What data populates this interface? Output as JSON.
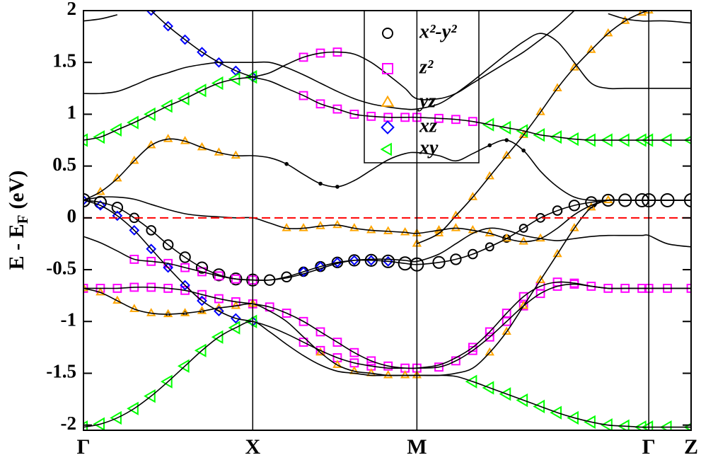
{
  "chart_data": {
    "type": "band",
    "ylabel": "E - E",
    "ylabel_sub": "F",
    "ylabel_unit": "(eV)",
    "xlim": [
      0,
      3.59
    ],
    "ylim": [
      -2.05,
      2
    ],
    "xticks": [
      {
        "value": 0,
        "label": "Γ"
      },
      {
        "value": 1.0,
        "label": "X"
      },
      {
        "value": 1.97,
        "label": "M"
      },
      {
        "value": 3.34,
        "label": "Γ"
      },
      {
        "value": 3.59,
        "label": "Z"
      }
    ],
    "yticks": [
      -2,
      -1.5,
      -1,
      -0.5,
      0,
      0.5,
      1,
      1.5,
      2
    ],
    "fermi_level": 0,
    "fermi_color": "#ff0000",
    "band_color": "#000000",
    "legend": "top",
    "x": [
      0,
      0.1,
      0.2,
      0.3,
      0.4,
      0.5,
      0.6,
      0.7,
      0.8,
      0.9,
      1.0,
      1.1,
      1.2,
      1.3,
      1.4,
      1.5,
      1.6,
      1.7,
      1.8,
      1.9,
      1.97,
      2.1,
      2.2,
      2.3,
      2.4,
      2.5,
      2.6,
      2.7,
      2.8,
      2.9,
      3.0,
      3.1,
      3.2,
      3.3,
      3.34,
      3.45,
      3.59
    ],
    "bands": [
      [
        -2.02,
        -1.99,
        -1.93,
        -1.84,
        -1.72,
        -1.58,
        -1.43,
        -1.28,
        -1.15,
        -1.06,
        -1.0,
        -1.1,
        -1.22,
        -1.33,
        -1.42,
        -1.48,
        -1.5,
        -1.52,
        -1.52,
        -1.52,
        -1.52,
        -1.52,
        -1.53,
        -1.58,
        -1.64,
        -1.7,
        -1.76,
        -1.82,
        -1.88,
        -1.93,
        -1.97,
        -2.0,
        -2.01,
        -2.02,
        -2.02,
        -2.02,
        -2.02
      ],
      [
        0.17,
        0.12,
        0.02,
        -0.12,
        -0.3,
        -0.48,
        -0.65,
        -0.8,
        -0.9,
        -0.97,
        -1.0,
        -1.05,
        -1.12,
        -1.2,
        -1.28,
        -1.35,
        -1.4,
        -1.43,
        -1.45,
        -1.45,
        -1.45,
        -1.42,
        -1.35,
        -1.25,
        -1.1,
        -0.92,
        -0.76,
        -0.66,
        -0.62,
        -0.63,
        -0.66,
        -0.68,
        -0.68,
        -0.68,
        -0.68,
        -0.68,
        -0.68
      ],
      [
        -0.68,
        -0.68,
        -0.68,
        -0.67,
        -0.67,
        -0.68,
        -0.7,
        -0.74,
        -0.78,
        -0.81,
        -0.83,
        -0.86,
        -0.92,
        -1.0,
        -1.1,
        -1.2,
        -1.3,
        -1.38,
        -1.43,
        -1.45,
        -1.45,
        -1.44,
        -1.38,
        -1.28,
        -1.15,
        -1.0,
        -0.85,
        -0.73,
        -0.66,
        -0.64,
        -0.66,
        -0.68,
        -0.68,
        -0.68,
        -0.68,
        -0.68,
        -0.68
      ],
      [
        0.17,
        0.15,
        0.1,
        0.0,
        -0.12,
        -0.26,
        -0.38,
        -0.48,
        -0.55,
        -0.59,
        -0.6,
        -0.6,
        -0.57,
        -0.52,
        -0.47,
        -0.43,
        -0.41,
        -0.41,
        -0.42,
        -0.44,
        -0.45,
        -0.43,
        -0.4,
        -0.35,
        -0.28,
        -0.2,
        -0.1,
        0.0,
        0.07,
        0.12,
        0.15,
        0.17,
        0.17,
        0.17,
        0.17,
        0.17,
        0.17
      ],
      [
        -0.18,
        -0.24,
        -0.32,
        -0.4,
        -0.42,
        -0.44,
        -0.48,
        -0.52,
        -0.56,
        -0.59,
        -0.6,
        -0.6,
        -0.58,
        -0.54,
        -0.49,
        -0.44,
        -0.41,
        -0.4,
        -0.4,
        -0.41,
        -0.42,
        -0.35,
        -0.25,
        -0.15,
        -0.1,
        -0.12,
        -0.17,
        -0.2,
        -0.22,
        -0.2,
        -0.18,
        -0.17,
        -0.17,
        -0.17,
        -0.17,
        -0.25,
        -0.28
      ],
      [
        -0.68,
        -0.72,
        -0.8,
        -0.88,
        -0.92,
        -0.93,
        -0.92,
        -0.9,
        -0.87,
        -0.85,
        -0.83,
        -0.9,
        -1.0,
        -1.15,
        -1.3,
        -1.42,
        -1.48,
        -1.5,
        -1.52,
        -1.52,
        -1.52,
        -1.52,
        -1.5,
        -1.45,
        -1.3,
        -1.1,
        -0.85,
        -0.6,
        -0.35,
        -0.1,
        0.1,
        0.17,
        0.17,
        0.17,
        0.17,
        0.17,
        0.17
      ],
      [
        0.17,
        0.25,
        0.38,
        0.55,
        0.7,
        0.76,
        0.74,
        0.68,
        0.63,
        0.6,
        0.6,
        0.58,
        0.52,
        0.42,
        0.33,
        0.3,
        0.36,
        0.46,
        0.56,
        0.62,
        0.63,
        0.6,
        0.55,
        0.62,
        0.7,
        0.75,
        0.65,
        0.45,
        0.3,
        0.2,
        0.17,
        0.17,
        0.17,
        0.17,
        0.17,
        0.17,
        0.17
      ],
      [
        0.17,
        0.2,
        0.2,
        0.18,
        0.13,
        0.08,
        0.04,
        0.02,
        0.01,
        0.0,
        0.0,
        -0.05,
        -0.1,
        -0.1,
        -0.08,
        -0.07,
        -0.1,
        -0.12,
        -0.13,
        -0.14,
        -0.15,
        -0.12,
        -0.1,
        -0.12,
        -0.15,
        -0.2,
        -0.23,
        -0.2,
        -0.1,
        0.03,
        0.12,
        0.17,
        0.17,
        0.17,
        0.17,
        0.17,
        0.17
      ],
      [
        null,
        null,
        null,
        null,
        2.0,
        1.85,
        1.72,
        1.6,
        1.5,
        1.42,
        1.36,
        1.32,
        1.25,
        1.18,
        1.1,
        1.05,
        1.0,
        0.98,
        0.97,
        0.97,
        0.97,
        0.96,
        0.95,
        0.93,
        0.9,
        0.87,
        0.84,
        0.8,
        0.78,
        0.76,
        0.75,
        0.75,
        0.75,
        0.75,
        0.75,
        0.75,
        0.75
      ],
      [
        0.75,
        0.78,
        0.85,
        0.92,
        1.0,
        1.08,
        1.15,
        1.23,
        1.3,
        1.34,
        1.36,
        1.4,
        1.48,
        1.55,
        1.59,
        1.6,
        1.58,
        1.5,
        1.38,
        1.25,
        1.15,
        1.15,
        1.2,
        1.3,
        1.4,
        1.5,
        1.6,
        1.72,
        1.85,
        2.0,
        null,
        null,
        null,
        null,
        null,
        null,
        null
      ],
      [
        1.2,
        1.2,
        1.22,
        1.28,
        1.35,
        1.4,
        1.45,
        1.48,
        1.5,
        1.5,
        1.5,
        1.5,
        1.45,
        1.38,
        1.3,
        1.22,
        1.15,
        1.1,
        1.07,
        1.05,
        1.05,
        1.1,
        1.2,
        1.32,
        1.45,
        1.58,
        1.7,
        1.78,
        1.7,
        1.5,
        1.3,
        1.25,
        1.25,
        1.25,
        1.25,
        1.25,
        1.25
      ],
      [
        1.9,
        1.92,
        1.96,
        null,
        null,
        null,
        null,
        null,
        null,
        null,
        null,
        null,
        null,
        null,
        null,
        null,
        null,
        null,
        null,
        null,
        null,
        null,
        null,
        null,
        null,
        null,
        null,
        null,
        null,
        null,
        null,
        1.97,
        1.92,
        1.9,
        1.9,
        1.9,
        1.88
      ],
      [
        null,
        null,
        null,
        null,
        null,
        null,
        null,
        null,
        null,
        null,
        null,
        null,
        null,
        null,
        null,
        null,
        null,
        null,
        null,
        null,
        -0.25,
        -0.15,
        0.02,
        0.2,
        0.4,
        0.6,
        0.8,
        1.02,
        1.25,
        1.45,
        1.62,
        1.78,
        1.9,
        1.98,
        2.0,
        null,
        null
      ]
    ],
    "series": [
      {
        "name": "x²-y²",
        "color": "#000000",
        "marker": "circle",
        "x": [
          0,
          0.1,
          0.2,
          0.3,
          0.4,
          0.5,
          0.6,
          0.7,
          0.8,
          0.9,
          1.0,
          1.1,
          1.2,
          1.3,
          1.4,
          1.5,
          1.6,
          1.7,
          1.8,
          1.9,
          1.97,
          2.1,
          2.2,
          2.3,
          2.4,
          2.5,
          2.6,
          2.7,
          2.8,
          2.9,
          3.0,
          3.1,
          3.2,
          3.3,
          3.34,
          3.45,
          3.59,
          1.2,
          1.4,
          1.5,
          2.4,
          2.5,
          2.6,
          0.5,
          0.6,
          0.7
        ],
        "y": [
          0.17,
          0.15,
          0.1,
          0.0,
          -0.12,
          -0.26,
          -0.38,
          -0.48,
          -0.55,
          -0.59,
          -0.6,
          -0.6,
          -0.57,
          -0.52,
          -0.47,
          -0.43,
          -0.41,
          -0.41,
          -0.42,
          -0.44,
          -0.45,
          -0.43,
          -0.4,
          -0.35,
          -0.28,
          -0.2,
          -0.1,
          0.0,
          0.07,
          0.12,
          0.15,
          0.17,
          0.17,
          0.17,
          0.17,
          0.17,
          0.17,
          0.52,
          0.33,
          0.3,
          0.7,
          0.75,
          0.65,
          -0.93,
          -0.92,
          -0.9
        ],
        "size": [
          1,
          0.9,
          0.8,
          0.7,
          0.7,
          0.75,
          0.8,
          0.85,
          0.9,
          0.9,
          0.9,
          0.8,
          0.75,
          0.7,
          0.75,
          0.8,
          0.85,
          0.9,
          0.95,
          1,
          1,
          0.9,
          0.8,
          0.7,
          0.6,
          0.55,
          0.6,
          0.65,
          0.7,
          0.8,
          0.85,
          0.9,
          0.95,
          1,
          1,
          1,
          1,
          0.2,
          0.2,
          0.2,
          0.2,
          0.2,
          0.2,
          0.3,
          0.3,
          0.3
        ]
      },
      {
        "name": "z²",
        "color": "#ff00ff",
        "marker": "square",
        "size": 0.6,
        "x": [
          0,
          0.1,
          0.2,
          0.3,
          0.4,
          0.5,
          0.6,
          0.7,
          0.8,
          0.9,
          1.0,
          0.3,
          0.4,
          0.5,
          0.6,
          0.7,
          0.8,
          0.9,
          1.0,
          1.1,
          1.2,
          1.3,
          1.4,
          1.5,
          1.6,
          1.7,
          1.8,
          1.9,
          1.97,
          1.3,
          1.4,
          1.5,
          1.6,
          1.7,
          2.1,
          2.2,
          2.3,
          2.4,
          2.5,
          2.6,
          2.7,
          2.8,
          2.9,
          3.0,
          3.1,
          3.2,
          3.3,
          3.34,
          3.45,
          3.59,
          2.3,
          2.4,
          2.5,
          2.6,
          2.7,
          2.8,
          2.9,
          1.3,
          1.4,
          1.5,
          1.6,
          1.7,
          1.8,
          1.9,
          1.97,
          2.1,
          2.2,
          2.3,
          1.3,
          1.4,
          1.5
        ],
        "y": [
          -0.68,
          -0.68,
          -0.68,
          -0.67,
          -0.67,
          -0.68,
          -0.7,
          -0.74,
          -0.78,
          -0.81,
          -0.83,
          -0.4,
          -0.42,
          -0.44,
          -0.48,
          -0.52,
          -0.56,
          -0.59,
          -0.6,
          -0.86,
          -0.92,
          -1.0,
          -1.1,
          -1.2,
          -1.3,
          -1.38,
          -1.43,
          -1.45,
          -1.45,
          -1.2,
          -1.28,
          -1.35,
          -1.4,
          -1.43,
          -1.44,
          -1.38,
          -1.28,
          -1.15,
          -1.0,
          -0.85,
          -0.73,
          -0.66,
          -0.64,
          -0.66,
          -0.68,
          -0.68,
          -0.68,
          -0.68,
          -0.68,
          -0.68,
          -1.25,
          -1.1,
          -0.92,
          -0.76,
          -0.66,
          -0.62,
          -0.63,
          1.18,
          1.1,
          1.05,
          1.0,
          0.98,
          0.97,
          0.97,
          0.97,
          0.96,
          0.95,
          0.93,
          1.55,
          1.59,
          1.6
        ]
      },
      {
        "name": "yz",
        "color": "#ffa500",
        "marker": "triangle-up",
        "size": 0.5,
        "x": [
          0,
          0.1,
          0.2,
          0.3,
          0.4,
          0.5,
          0.6,
          0.7,
          0.8,
          0.9,
          1.0,
          0.1,
          0.2,
          0.3,
          0.4,
          0.5,
          0.6,
          0.7,
          0.8,
          0.9,
          1.2,
          1.3,
          1.4,
          1.5,
          1.6,
          1.7,
          1.8,
          1.9,
          1.97,
          2.1,
          2.2,
          2.3,
          2.4,
          2.5,
          2.6,
          2.7,
          1.4,
          1.5,
          1.6,
          1.7,
          1.8,
          1.9,
          1.97,
          2.4,
          2.5,
          2.6,
          2.7,
          2.8,
          2.9,
          3.0,
          3.1,
          1.97,
          2.1,
          2.2,
          2.3,
          2.4,
          2.5,
          2.6,
          2.7,
          2.8,
          2.9,
          3.0,
          3.1,
          3.2,
          3.3,
          3.34
        ],
        "y": [
          -0.68,
          -0.72,
          -0.8,
          -0.88,
          -0.92,
          -0.93,
          -0.92,
          -0.9,
          -0.87,
          -0.85,
          -0.83,
          0.25,
          0.38,
          0.55,
          0.7,
          0.76,
          0.74,
          0.68,
          0.63,
          0.6,
          -0.1,
          -0.1,
          -0.08,
          -0.07,
          -0.1,
          -0.12,
          -0.13,
          -0.14,
          -0.15,
          -0.12,
          -0.1,
          -0.12,
          -0.15,
          -0.2,
          -0.23,
          -0.2,
          -1.3,
          -1.42,
          -1.48,
          -1.5,
          -1.52,
          -1.52,
          -1.52,
          -1.3,
          -1.1,
          -0.85,
          -0.6,
          -0.35,
          -0.1,
          0.1,
          0.17,
          -0.25,
          -0.15,
          0.02,
          0.2,
          0.4,
          0.6,
          0.8,
          1.02,
          1.25,
          1.45,
          1.62,
          1.78,
          1.9,
          1.98,
          2.0
        ]
      },
      {
        "name": "xz",
        "color": "#0000ff",
        "marker": "diamond",
        "size": 0.55,
        "x": [
          0,
          0.1,
          0.2,
          0.3,
          0.4,
          0.5,
          0.6,
          0.7,
          0.8,
          0.9,
          1.0,
          0.4,
          0.5,
          0.6,
          0.7,
          0.8,
          0.9,
          1.0,
          1.3,
          1.4,
          1.5,
          1.6,
          1.7,
          1.8
        ],
        "y": [
          0.17,
          0.12,
          0.02,
          -0.12,
          -0.3,
          -0.48,
          -0.65,
          -0.8,
          -0.9,
          -0.97,
          -1.0,
          2.0,
          1.85,
          1.72,
          1.6,
          1.5,
          1.42,
          1.36,
          -0.52,
          -0.47,
          -0.43,
          -0.41,
          -0.41,
          -0.42
        ]
      },
      {
        "name": "xy",
        "color": "#00ff00",
        "marker": "triangle-left",
        "size": 0.8,
        "x": [
          0,
          0.1,
          0.2,
          0.3,
          0.4,
          0.5,
          0.6,
          0.7,
          0.8,
          0.9,
          1.0,
          2.3,
          2.4,
          2.5,
          2.6,
          2.7,
          2.8,
          2.9,
          3.0,
          3.1,
          3.2,
          3.3,
          3.34,
          3.45,
          3.59,
          0,
          0.1,
          0.2,
          0.3,
          0.4,
          0.5,
          0.6,
          0.7,
          0.8,
          0.9,
          1.0,
          2.4,
          2.5,
          2.6,
          2.7,
          2.8,
          2.9,
          3.0,
          3.1,
          3.2,
          3.3,
          3.34,
          3.45,
          3.59
        ],
        "y": [
          -2.02,
          -1.99,
          -1.93,
          -1.84,
          -1.72,
          -1.58,
          -1.43,
          -1.28,
          -1.15,
          -1.06,
          -1.0,
          -1.58,
          -1.64,
          -1.7,
          -1.76,
          -1.82,
          -1.88,
          -1.93,
          -1.97,
          -2.0,
          -2.01,
          -2.02,
          -2.02,
          -2.02,
          -2.02,
          0.75,
          0.78,
          0.85,
          0.92,
          1.0,
          1.08,
          1.15,
          1.23,
          1.3,
          1.34,
          1.36,
          0.9,
          0.87,
          0.84,
          0.8,
          0.78,
          0.76,
          0.75,
          0.75,
          0.75,
          0.75,
          0.75,
          0.75,
          0.75
        ]
      }
    ]
  }
}
